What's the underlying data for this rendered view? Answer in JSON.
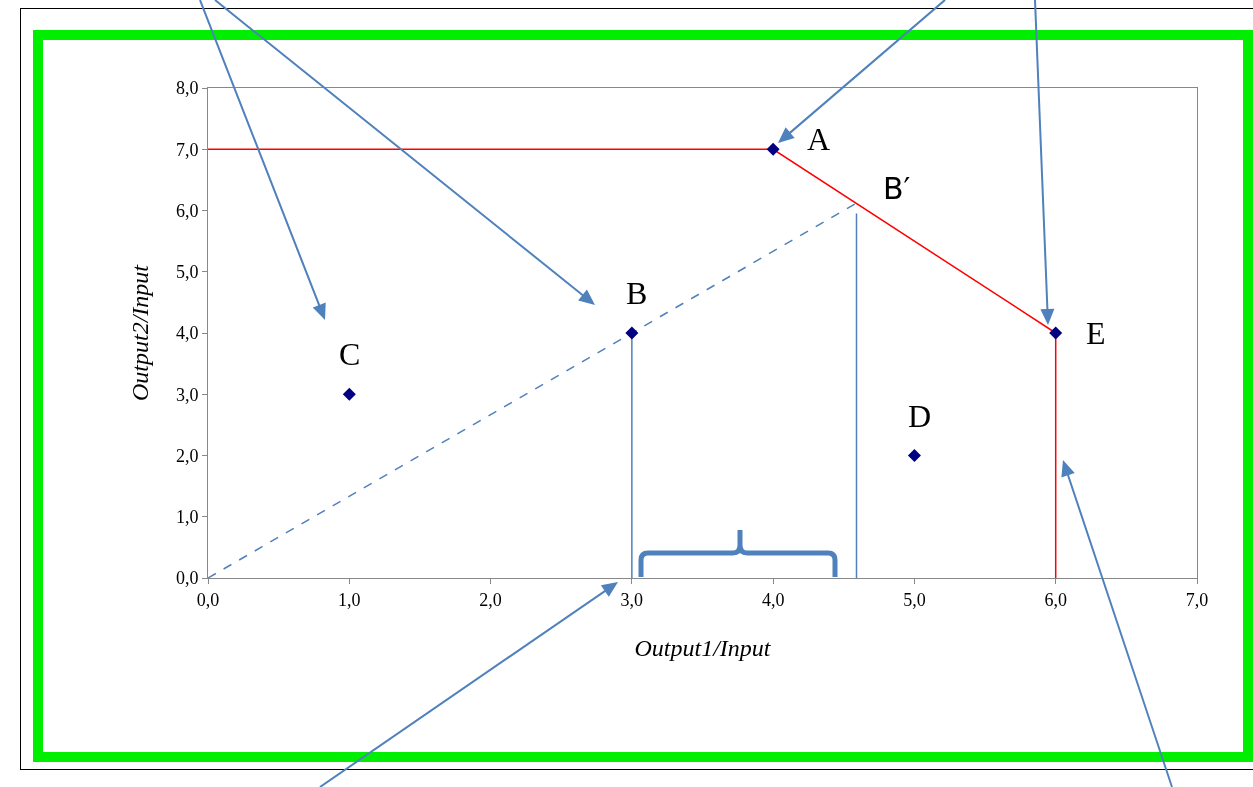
{
  "chart_data": {
    "type": "scatter",
    "xlabel": "Output1/Input",
    "ylabel": "Output2/Input",
    "xlim": [
      0,
      7
    ],
    "ylim": [
      0,
      8
    ],
    "xticks": [
      {
        "value": 0,
        "label": "0,0"
      },
      {
        "value": 1,
        "label": "1,0"
      },
      {
        "value": 2,
        "label": "2,0"
      },
      {
        "value": 3,
        "label": "3,0"
      },
      {
        "value": 4,
        "label": "4,0"
      },
      {
        "value": 5,
        "label": "5,0"
      },
      {
        "value": 6,
        "label": "6,0"
      },
      {
        "value": 7,
        "label": "7,0"
      }
    ],
    "yticks": [
      {
        "value": 0,
        "label": "0,0"
      },
      {
        "value": 1,
        "label": "1,0"
      },
      {
        "value": 2,
        "label": "2,0"
      },
      {
        "value": 3,
        "label": "3,0"
      },
      {
        "value": 4,
        "label": "4,0"
      },
      {
        "value": 5,
        "label": "5,0"
      },
      {
        "value": 6,
        "label": "6,0"
      },
      {
        "value": 7,
        "label": "7,0"
      },
      {
        "value": 8,
        "label": "8,0"
      }
    ],
    "grid": false,
    "series": [
      {
        "type": "line",
        "color": "#ff0000",
        "line_style": "solid",
        "marker": "none",
        "x": [
          0,
          4,
          6,
          6
        ],
        "values": [
          7,
          7,
          4,
          0
        ]
      },
      {
        "type": "line",
        "color": "#4f81bd",
        "line_style": "dashed",
        "marker": "none",
        "x": [
          0,
          4.59
        ],
        "values": [
          0,
          6.12
        ]
      },
      {
        "type": "line",
        "color": "#4f81bd",
        "line_style": "solid",
        "marker": "none",
        "x": [
          3,
          3
        ],
        "values": [
          0,
          4
        ]
      },
      {
        "type": "line",
        "color": "#4f81bd",
        "line_style": "solid",
        "marker": "none",
        "x": [
          4.59,
          4.59
        ],
        "values": [
          0,
          5.95
        ]
      },
      {
        "type": "scatter",
        "color": "#000080",
        "marker": "diamond",
        "x": [
          4,
          3,
          1,
          5,
          6
        ],
        "values": [
          7,
          4,
          3,
          2,
          4
        ]
      }
    ],
    "annotations": [
      {
        "text": "A",
        "x": 4,
        "y": 7
      },
      {
        "text": "B",
        "x": 3,
        "y": 4
      },
      {
        "text": "C",
        "x": 1,
        "y": 3
      },
      {
        "text": "D",
        "x": 5,
        "y": 2
      },
      {
        "text": "E",
        "x": 6,
        "y": 4
      },
      {
        "text": "B′",
        "x": 4.59,
        "y": 6.12
      }
    ]
  }
}
